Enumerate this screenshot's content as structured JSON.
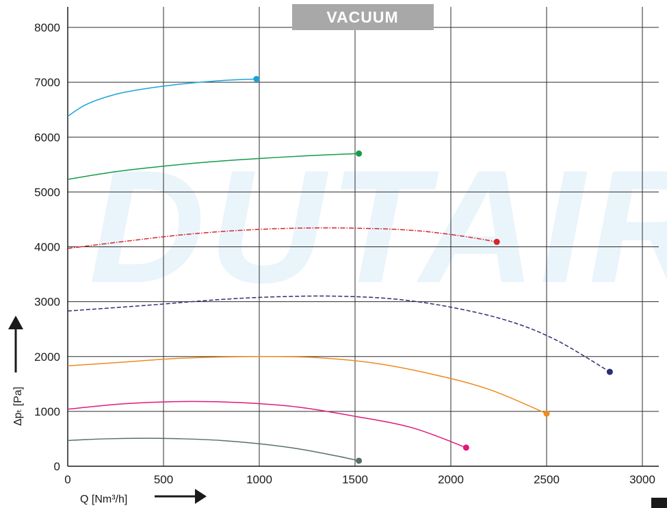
{
  "banner": {
    "text": "VACUUM",
    "bg_color": "#a8a8a8"
  },
  "watermark": {
    "text": "DUTAIR",
    "color": "#eaf4fb"
  },
  "axes": {
    "x_label": "Q [Nm³/h]",
    "y_label": "Δpₜ [Pa]"
  },
  "chart_data": {
    "type": "line",
    "title": "",
    "xlabel": "Q [Nm³/h]",
    "ylabel": "Δpₜ [Pa]",
    "xlim": [
      0,
      3000
    ],
    "ylim": [
      0,
      8000
    ],
    "x_ticks": [
      "0",
      "500",
      "1000",
      "1500",
      "2000",
      "2500",
      "3000"
    ],
    "y_ticks": [
      "0",
      "1000",
      "2000",
      "3000",
      "4000",
      "5000",
      "6000",
      "7000",
      "8000"
    ],
    "grid": true,
    "series": [
      {
        "color": "#1aa3d9",
        "style": "solid",
        "points": [
          [
            0,
            6380
          ],
          [
            100,
            6600
          ],
          [
            250,
            6780
          ],
          [
            400,
            6880
          ],
          [
            600,
            6970
          ],
          [
            800,
            7030
          ],
          [
            985,
            7060
          ]
        ]
      },
      {
        "color": "#129b4a",
        "style": "solid",
        "points": [
          [
            0,
            5230
          ],
          [
            250,
            5370
          ],
          [
            500,
            5470
          ],
          [
            750,
            5550
          ],
          [
            1000,
            5610
          ],
          [
            1250,
            5660
          ],
          [
            1520,
            5700
          ]
        ]
      },
      {
        "color": "#d8232a",
        "style": "dashdot",
        "points": [
          [
            0,
            3970
          ],
          [
            300,
            4100
          ],
          [
            600,
            4220
          ],
          [
            900,
            4300
          ],
          [
            1200,
            4340
          ],
          [
            1500,
            4340
          ],
          [
            1800,
            4300
          ],
          [
            2050,
            4200
          ],
          [
            2240,
            4090
          ]
        ]
      },
      {
        "color": "#2b2f72",
        "style": "dashed",
        "points": [
          [
            0,
            2830
          ],
          [
            400,
            2930
          ],
          [
            800,
            3040
          ],
          [
            1100,
            3090
          ],
          [
            1400,
            3100
          ],
          [
            1700,
            3050
          ],
          [
            2000,
            2900
          ],
          [
            2300,
            2650
          ],
          [
            2550,
            2300
          ],
          [
            2830,
            1720
          ]
        ]
      },
      {
        "color": "#ee8a1f",
        "style": "solid",
        "points": [
          [
            0,
            1830
          ],
          [
            300,
            1900
          ],
          [
            600,
            1970
          ],
          [
            1000,
            2000
          ],
          [
            1300,
            1980
          ],
          [
            1600,
            1880
          ],
          [
            1900,
            1680
          ],
          [
            2200,
            1400
          ],
          [
            2500,
            960
          ]
        ]
      },
      {
        "color": "#e0197b",
        "style": "solid",
        "points": [
          [
            0,
            1040
          ],
          [
            300,
            1140
          ],
          [
            600,
            1180
          ],
          [
            900,
            1160
          ],
          [
            1200,
            1080
          ],
          [
            1500,
            910
          ],
          [
            1800,
            700
          ],
          [
            2080,
            340
          ]
        ]
      },
      {
        "color": "#5a6e6c",
        "style": "solid",
        "points": [
          [
            0,
            470
          ],
          [
            200,
            500
          ],
          [
            400,
            510
          ],
          [
            600,
            500
          ],
          [
            800,
            470
          ],
          [
            1000,
            410
          ],
          [
            1200,
            320
          ],
          [
            1400,
            190
          ],
          [
            1520,
            100
          ]
        ]
      }
    ]
  }
}
